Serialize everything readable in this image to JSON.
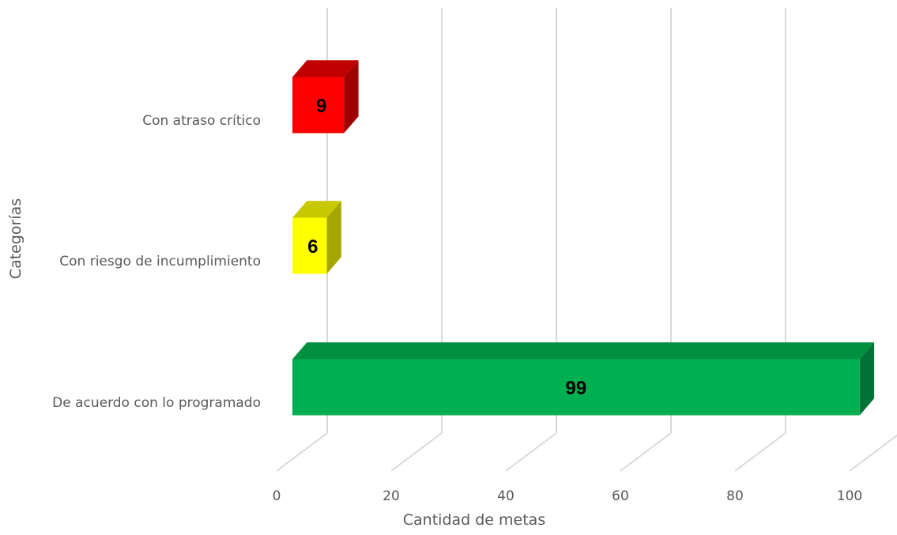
{
  "chart_data": {
    "type": "bar",
    "orientation": "horizontal",
    "three_d": true,
    "categories": [
      "Con atraso crítico",
      "Con riesgo de incumplimiento",
      "De acuerdo con lo programado"
    ],
    "values": [
      9,
      6,
      99
    ],
    "value_labels": [
      "9",
      "6",
      "99"
    ],
    "colors": [
      {
        "front": "#ff0000",
        "top": "#c00000",
        "side": "#a00000"
      },
      {
        "front": "#ffff00",
        "top": "#c8c800",
        "side": "#a6a600"
      },
      {
        "front": "#00b050",
        "top": "#00903f",
        "side": "#007236"
      }
    ],
    "xlim": [
      0,
      100
    ],
    "xticks": [
      0,
      20,
      40,
      60,
      80,
      100
    ],
    "xtick_labels": [
      "0",
      "20",
      "40",
      "60",
      "80",
      "100"
    ],
    "xlabel": "Cantidad de metas",
    "ylabel": "Categorías",
    "grid": true,
    "gridline_color": "#d9d9d9",
    "legend": false
  }
}
